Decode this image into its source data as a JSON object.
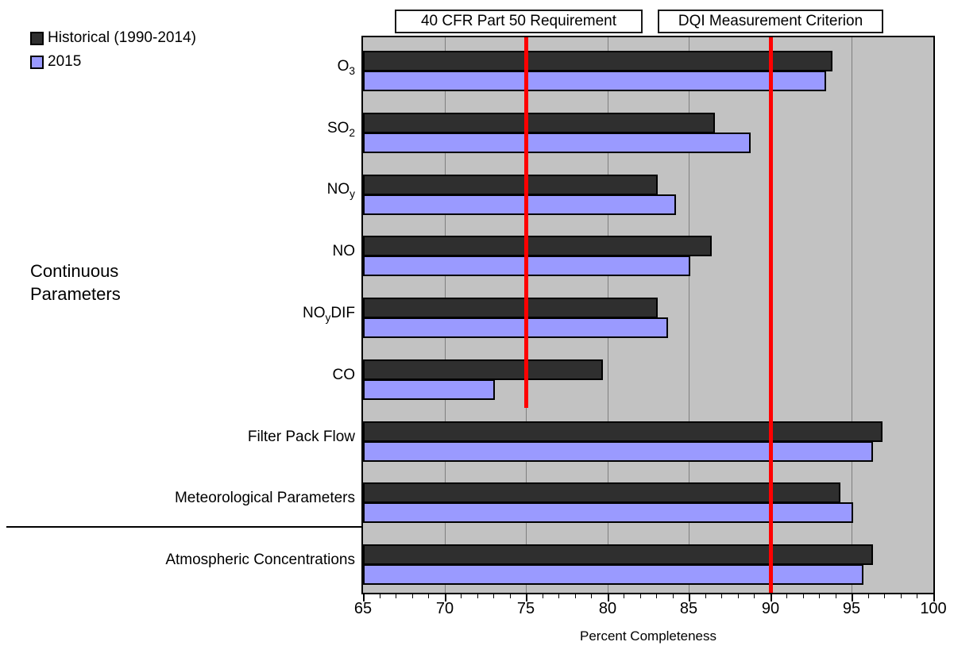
{
  "legend": {
    "items": [
      {
        "label": "Historical (1990-2014)",
        "color": "#2f2f2f"
      },
      {
        "label": "2015",
        "color": "#9a9aff"
      }
    ]
  },
  "side_label": "Continuous Parameters",
  "chart_data": {
    "type": "bar",
    "orientation": "horizontal",
    "xlabel": "Percent Completeness",
    "xlim": [
      65,
      100
    ],
    "xticks": [
      65,
      70,
      75,
      80,
      85,
      90,
      95,
      100
    ],
    "minor_tick_step": 1,
    "gridlines": [
      70,
      75,
      80,
      85,
      90,
      95
    ],
    "grid_color": "#7f7f7f",
    "plot_background": "#c2c2c2",
    "legend_position": "top-left",
    "categories": [
      {
        "parts": [
          {
            "text": "O"
          },
          {
            "text": "3",
            "sub": true
          }
        ]
      },
      {
        "parts": [
          {
            "text": "SO"
          },
          {
            "text": "2",
            "sub": true
          }
        ]
      },
      {
        "parts": [
          {
            "text": "NO"
          },
          {
            "text": "y",
            "sub": true
          }
        ]
      },
      {
        "parts": [
          {
            "text": "NO"
          }
        ]
      },
      {
        "parts": [
          {
            "text": "NO"
          },
          {
            "text": "y",
            "sub": true
          },
          {
            "text": "DIF"
          }
        ]
      },
      {
        "parts": [
          {
            "text": "CO"
          }
        ]
      },
      {
        "parts": [
          {
            "text": "Filter Pack Flow"
          }
        ]
      },
      {
        "parts": [
          {
            "text": "Meteorological Parameters"
          }
        ]
      },
      {
        "parts": [
          {
            "text": "Atmospheric Concentrations"
          }
        ]
      }
    ],
    "continuous_group": {
      "label": "Continuous Parameters",
      "category_count": 6
    },
    "series": [
      {
        "name": "Historical (1990-2014)",
        "color": "#2f2f2f",
        "values": [
          93.7,
          86.5,
          83.0,
          86.3,
          83.0,
          79.6,
          96.8,
          94.2,
          96.2
        ]
      },
      {
        "name": "2015",
        "color": "#9a9aff",
        "values": [
          93.3,
          88.7,
          84.1,
          85.0,
          83.6,
          73.0,
          96.2,
          95.0,
          95.6
        ]
      }
    ],
    "reference_lines": [
      {
        "label": "40 CFR Part 50 Requirement",
        "value": 75,
        "color": "#ff0000",
        "rows_spanned": 6
      },
      {
        "label": "DQI Measurement Criterion",
        "value": 90,
        "color": "#ff0000",
        "rows_spanned": 9
      }
    ]
  }
}
